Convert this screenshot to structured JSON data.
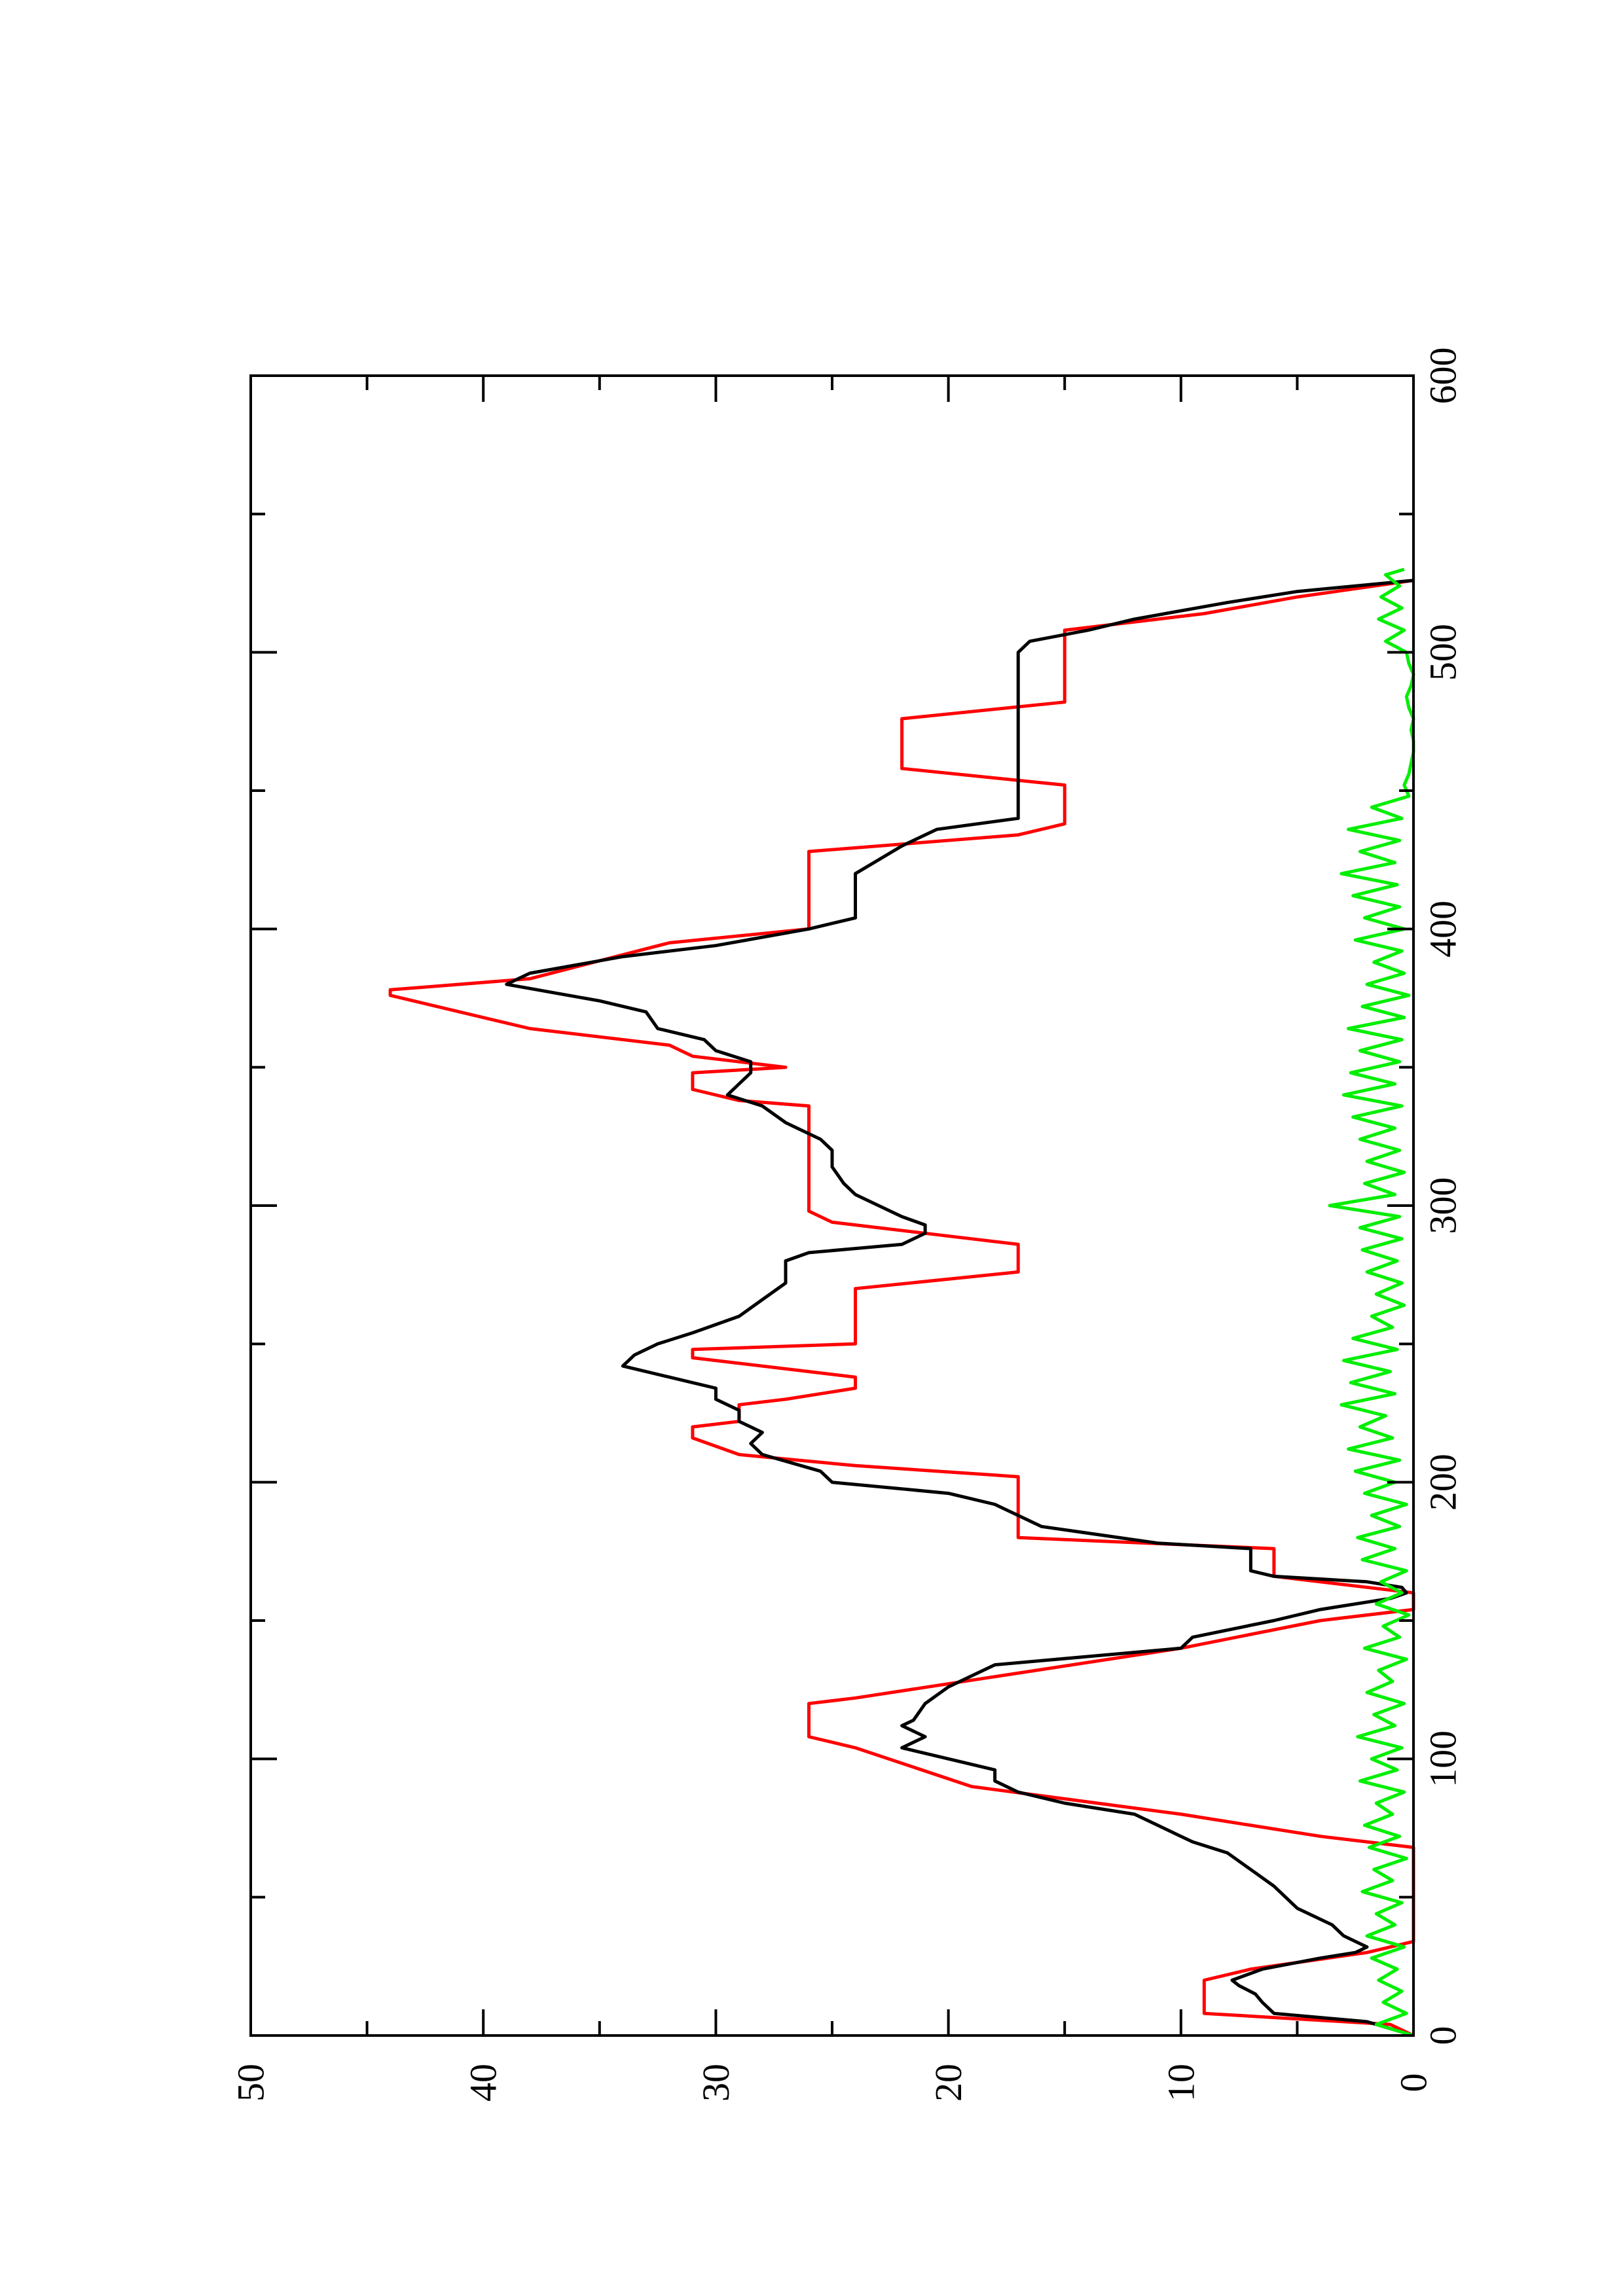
{
  "chart_data": {
    "type": "line",
    "title": "",
    "xlabel": "",
    "ylabel": "",
    "xlim": [
      0,
      600
    ],
    "ylim": [
      0,
      50
    ],
    "x_ticks": [
      0,
      100,
      200,
      300,
      400,
      500,
      600
    ],
    "x_tick_labels": [
      "0",
      "100",
      "200",
      "300",
      "400",
      "500",
      "600"
    ],
    "x_minor_ticks": [
      50,
      150,
      250,
      350,
      450,
      550
    ],
    "y_ticks": [
      0,
      10,
      20,
      30,
      40,
      50
    ],
    "y_tick_labels": [
      "0",
      "10",
      "20",
      "30",
      "40",
      "50"
    ],
    "y_minor_ticks": [
      5,
      15,
      25,
      35,
      45
    ],
    "grid": false,
    "legend": "none",
    "orientation": "page rotated 90 degrees counter-clockwise",
    "series": [
      {
        "color": "#ff0000",
        "points": [
          [
            0,
            0
          ],
          [
            4,
            1
          ],
          [
            8,
            9
          ],
          [
            20,
            9
          ],
          [
            24,
            7
          ],
          [
            30,
            2
          ],
          [
            34,
            0
          ],
          [
            68,
            0
          ],
          [
            70,
            2
          ],
          [
            72,
            4
          ],
          [
            80,
            10
          ],
          [
            90,
            19
          ],
          [
            104,
            24
          ],
          [
            108,
            26
          ],
          [
            120,
            26
          ],
          [
            122,
            24
          ],
          [
            140,
            10
          ],
          [
            150,
            4
          ],
          [
            154,
            0
          ],
          [
            160,
            0
          ],
          [
            166,
            6
          ],
          [
            176,
            6
          ],
          [
            180,
            17
          ],
          [
            202,
            17
          ],
          [
            206,
            24
          ],
          [
            210,
            29
          ],
          [
            216,
            31
          ],
          [
            220,
            31
          ],
          [
            222,
            29
          ],
          [
            228,
            29
          ],
          [
            230,
            27
          ],
          [
            234,
            24
          ],
          [
            238,
            24
          ],
          [
            240,
            26
          ],
          [
            245,
            31
          ],
          [
            248,
            31
          ],
          [
            250,
            24
          ],
          [
            266,
            24
          ],
          [
            270,
            24
          ],
          [
            276,
            17
          ],
          [
            286,
            17
          ],
          [
            290,
            21
          ],
          [
            294,
            25
          ],
          [
            298,
            26
          ],
          [
            318,
            26
          ],
          [
            320,
            26
          ],
          [
            336,
            26
          ],
          [
            338,
            29
          ],
          [
            342,
            31
          ],
          [
            348,
            31
          ],
          [
            350,
            27
          ],
          [
            354,
            31
          ],
          [
            358,
            32
          ],
          [
            364,
            38
          ],
          [
            376,
            44
          ],
          [
            378,
            44
          ],
          [
            382,
            38
          ],
          [
            395,
            32
          ],
          [
            400,
            26
          ],
          [
            428,
            26
          ],
          [
            434,
            17
          ],
          [
            438,
            15
          ],
          [
            440,
            15
          ],
          [
            452,
            15
          ],
          [
            458,
            22
          ],
          [
            476,
            22
          ],
          [
            482,
            15
          ],
          [
            508,
            15
          ],
          [
            514,
            9
          ],
          [
            520,
            5
          ],
          [
            526,
            0
          ]
        ]
      },
      {
        "color": "#000000",
        "points": [
          [
            0,
            0
          ],
          [
            5,
            2
          ],
          [
            8,
            6
          ],
          [
            12,
            6.5
          ],
          [
            15,
            6.8
          ],
          [
            18,
            7.5
          ],
          [
            20,
            7.8
          ],
          [
            24,
            6.5
          ],
          [
            28,
            4
          ],
          [
            30,
            2.5
          ],
          [
            32,
            2
          ],
          [
            36,
            3
          ],
          [
            40,
            3.5
          ],
          [
            46,
            5
          ],
          [
            54,
            6
          ],
          [
            60,
            7
          ],
          [
            66,
            8
          ],
          [
            70,
            9.5
          ],
          [
            72,
            10
          ],
          [
            76,
            11
          ],
          [
            80,
            12
          ],
          [
            84,
            15
          ],
          [
            88,
            17
          ],
          [
            92,
            18
          ],
          [
            96,
            18
          ],
          [
            100,
            20
          ],
          [
            104,
            22
          ],
          [
            108,
            21
          ],
          [
            112,
            22
          ],
          [
            114,
            21.5
          ],
          [
            120,
            21
          ],
          [
            126,
            20
          ],
          [
            134,
            18
          ],
          [
            140,
            10
          ],
          [
            144,
            9.5
          ],
          [
            150,
            6
          ],
          [
            154,
            4
          ],
          [
            158,
            1
          ],
          [
            160,
            0.3
          ],
          [
            162,
            0.5
          ],
          [
            164,
            2
          ],
          [
            166,
            6
          ],
          [
            168,
            7
          ],
          [
            176,
            7
          ],
          [
            178,
            11
          ],
          [
            184,
            16
          ],
          [
            192,
            18
          ],
          [
            196,
            20
          ],
          [
            200,
            25
          ],
          [
            204,
            25.5
          ],
          [
            210,
            28
          ],
          [
            214,
            28.5
          ],
          [
            218,
            28
          ],
          [
            222,
            29
          ],
          [
            226,
            29
          ],
          [
            230,
            30
          ],
          [
            234,
            30
          ],
          [
            238,
            32
          ],
          [
            242,
            34
          ],
          [
            246,
            33.5
          ],
          [
            250,
            32.5
          ],
          [
            254,
            31
          ],
          [
            260,
            29
          ],
          [
            266,
            28
          ],
          [
            272,
            27
          ],
          [
            280,
            27
          ],
          [
            283,
            26
          ],
          [
            286,
            22
          ],
          [
            290,
            21
          ],
          [
            293,
            21
          ],
          [
            296,
            22
          ],
          [
            300,
            23
          ],
          [
            304,
            24
          ],
          [
            308,
            24.5
          ],
          [
            314,
            25
          ],
          [
            320,
            25
          ],
          [
            324,
            25.5
          ],
          [
            330,
            27
          ],
          [
            336,
            28
          ],
          [
            340,
            29.5
          ],
          [
            344,
            29
          ],
          [
            348,
            28.5
          ],
          [
            352,
            28.5
          ],
          [
            356,
            30
          ],
          [
            360,
            30.5
          ],
          [
            364,
            32.5
          ],
          [
            370,
            33
          ],
          [
            374,
            35
          ],
          [
            380,
            39
          ],
          [
            384,
            38
          ],
          [
            390,
            34
          ],
          [
            394,
            30
          ],
          [
            400,
            26
          ],
          [
            404,
            24
          ],
          [
            420,
            24
          ],
          [
            430,
            22
          ],
          [
            436,
            20.5
          ],
          [
            440,
            17
          ],
          [
            444,
            17
          ],
          [
            456,
            17
          ],
          [
            464,
            17
          ],
          [
            474,
            17
          ],
          [
            480,
            17
          ],
          [
            488,
            17
          ],
          [
            496,
            17
          ],
          [
            500,
            17
          ],
          [
            504,
            16.5
          ],
          [
            508,
            14
          ],
          [
            512,
            12
          ],
          [
            518,
            8
          ],
          [
            522,
            5
          ],
          [
            526,
            0
          ]
        ]
      },
      {
        "color": "#00ee00",
        "points": [
          [
            0,
            0
          ],
          [
            4,
            1.6
          ],
          [
            8,
            0.3
          ],
          [
            12,
            1.3
          ],
          [
            16,
            0.5
          ],
          [
            20,
            1.5
          ],
          [
            24,
            0.7
          ],
          [
            28,
            1.8
          ],
          [
            32,
            0.4
          ],
          [
            36,
            2
          ],
          [
            40,
            0.8
          ],
          [
            44,
            1.6
          ],
          [
            48,
            0.5
          ],
          [
            52,
            2.2
          ],
          [
            56,
            0.9
          ],
          [
            60,
            1.7
          ],
          [
            64,
            0.3
          ],
          [
            68,
            1.9
          ],
          [
            72,
            0.6
          ],
          [
            76,
            2.1
          ],
          [
            80,
            0.9
          ],
          [
            84,
            1.6
          ],
          [
            88,
            0.4
          ],
          [
            92,
            2.3
          ],
          [
            96,
            0.7
          ],
          [
            100,
            1.8
          ],
          [
            104,
            0.5
          ],
          [
            108,
            2.4
          ],
          [
            112,
            0.8
          ],
          [
            116,
            1.7
          ],
          [
            120,
            0.4
          ],
          [
            124,
            2
          ],
          [
            128,
            0.9
          ],
          [
            132,
            1.5
          ],
          [
            136,
            0.3
          ],
          [
            140,
            2.1
          ],
          [
            144,
            0.6
          ],
          [
            148,
            1.3
          ],
          [
            152,
            0.2
          ],
          [
            156,
            1.6
          ],
          [
            160,
            0.5
          ],
          [
            164,
            1.4
          ],
          [
            168,
            0.3
          ],
          [
            172,
            2.2
          ],
          [
            176,
            0.8
          ],
          [
            180,
            2.4
          ],
          [
            184,
            0.6
          ],
          [
            188,
            1.8
          ],
          [
            192,
            0.3
          ],
          [
            196,
            2.1
          ],
          [
            200,
            0.8
          ],
          [
            204,
            2.5
          ],
          [
            208,
            0.6
          ],
          [
            212,
            2.8
          ],
          [
            216,
            0.9
          ],
          [
            220,
            2.3
          ],
          [
            224,
            1.2
          ],
          [
            228,
            3.1
          ],
          [
            232,
            0.8
          ],
          [
            236,
            2.7
          ],
          [
            240,
            1
          ],
          [
            244,
            3
          ],
          [
            248,
            0.7
          ],
          [
            252,
            2.6
          ],
          [
            256,
            0.9
          ],
          [
            260,
            1.8
          ],
          [
            264,
            0.4
          ],
          [
            268,
            1.6
          ],
          [
            272,
            0.5
          ],
          [
            276,
            2
          ],
          [
            280,
            0.7
          ],
          [
            284,
            2.2
          ],
          [
            288,
            0.5
          ],
          [
            292,
            2.3
          ],
          [
            296,
            0.6
          ],
          [
            300,
            3.6
          ],
          [
            304,
            0.8
          ],
          [
            308,
            2.1
          ],
          [
            312,
            0.4
          ],
          [
            316,
            2
          ],
          [
            320,
            0.6
          ],
          [
            324,
            2.3
          ],
          [
            328,
            0.8
          ],
          [
            332,
            2.6
          ],
          [
            336,
            0.5
          ],
          [
            340,
            3
          ],
          [
            344,
            0.8
          ],
          [
            348,
            2.7
          ],
          [
            352,
            0.6
          ],
          [
            356,
            2.3
          ],
          [
            360,
            0.5
          ],
          [
            364,
            2.8
          ],
          [
            368,
            0.4
          ],
          [
            372,
            2.2
          ],
          [
            376,
            0.2
          ],
          [
            380,
            2
          ],
          [
            384,
            0.4
          ],
          [
            388,
            1.7
          ],
          [
            392,
            0.5
          ],
          [
            396,
            2.5
          ],
          [
            400,
            0.4
          ],
          [
            404,
            2.1
          ],
          [
            408,
            0.6
          ],
          [
            412,
            2.6
          ],
          [
            416,
            0.7
          ],
          [
            420,
            3.1
          ],
          [
            424,
            0.8
          ],
          [
            428,
            2.3
          ],
          [
            432,
            0.6
          ],
          [
            436,
            2.8
          ],
          [
            440,
            0.5
          ],
          [
            444,
            1.8
          ],
          [
            448,
            0.2
          ],
          [
            452,
            0.4
          ],
          [
            456,
            0.2
          ],
          [
            460,
            0.1
          ],
          [
            464,
            0
          ],
          [
            468,
            0
          ],
          [
            472,
            0.1
          ],
          [
            476,
            0
          ],
          [
            480,
            0.2
          ],
          [
            484,
            0.3
          ],
          [
            488,
            0.1
          ],
          [
            492,
            0
          ],
          [
            496,
            0.2
          ],
          [
            500,
            0.3
          ],
          [
            504,
            1.2
          ],
          [
            508,
            0.4
          ],
          [
            512,
            1.5
          ],
          [
            516,
            0.5
          ],
          [
            520,
            1.4
          ],
          [
            524,
            0.6
          ],
          [
            528,
            1.2
          ],
          [
            530,
            0.4
          ]
        ]
      }
    ]
  }
}
